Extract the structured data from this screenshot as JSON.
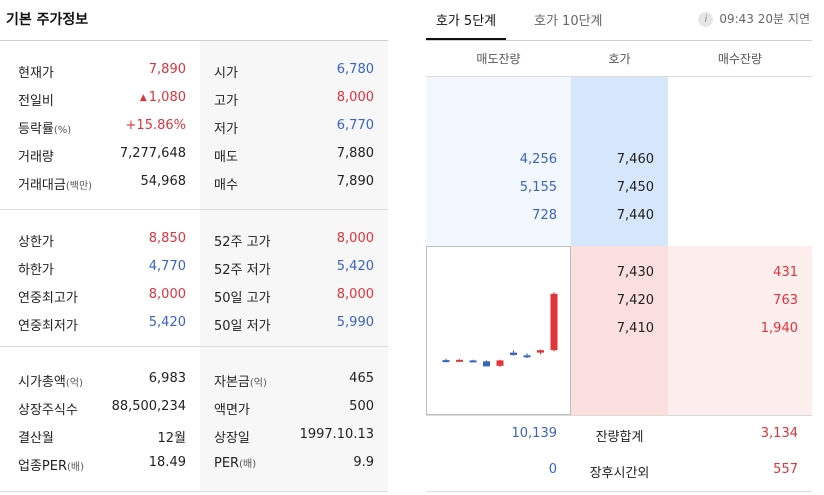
{
  "basic": {
    "title": "기본 주가정보",
    "group1": [
      {
        "label": "현재가",
        "unit": "",
        "value": "7,890",
        "color": "red",
        "label2": "시가",
        "unit2": "",
        "value2": "6,780",
        "color2": "blue"
      },
      {
        "label": "전일비",
        "unit": "",
        "value": "1,080",
        "arrow": "▲",
        "color": "red",
        "label2": "고가",
        "unit2": "",
        "value2": "8,000",
        "color2": "red"
      },
      {
        "label": "등락률",
        "unit": "(%)",
        "value": "+15.86%",
        "color": "red",
        "label2": "저가",
        "unit2": "",
        "value2": "6,770",
        "color2": "blue"
      },
      {
        "label": "거래량",
        "unit": "",
        "value": "7,277,648",
        "color": "dark",
        "label2": "매도",
        "unit2": "",
        "value2": "7,880",
        "color2": "dark"
      },
      {
        "label": "거래대금",
        "unit": "(백만)",
        "value": "54,968",
        "color": "dark",
        "label2": "매수",
        "unit2": "",
        "value2": "7,890",
        "color2": "dark"
      }
    ],
    "group2": [
      {
        "label": "상한가",
        "unit": "",
        "value": "8,850",
        "color": "red",
        "label2": "52주 고가",
        "unit2": "",
        "value2": "8,000",
        "color2": "red"
      },
      {
        "label": "하한가",
        "unit": "",
        "value": "4,770",
        "color": "blue",
        "label2": "52주 저가",
        "unit2": "",
        "value2": "5,420",
        "color2": "blue"
      },
      {
        "label": "연중최고가",
        "unit": "",
        "value": "8,000",
        "color": "red",
        "label2": "50일 고가",
        "unit2": "",
        "value2": "8,000",
        "color2": "red"
      },
      {
        "label": "연중최저가",
        "unit": "",
        "value": "5,420",
        "color": "blue",
        "label2": "50일 저가",
        "unit2": "",
        "value2": "5,990",
        "color2": "blue"
      }
    ],
    "group3": [
      {
        "label": "시가총액",
        "unit": "(억)",
        "value": "6,983",
        "color": "dark",
        "label2": "자본금",
        "unit2": "(억)",
        "value2": "465",
        "color2": "dark"
      },
      {
        "label": "상장주식수",
        "unit": "",
        "value": "88,500,234",
        "color": "dark",
        "label2": "액면가",
        "unit2": "",
        "value2": "500",
        "color2": "dark"
      },
      {
        "label": "결산월",
        "unit": "",
        "value": "12월",
        "color": "dark",
        "label2": "상장일",
        "unit2": "",
        "value2": "1997.10.13",
        "color2": "dark"
      },
      {
        "label": "업종PER",
        "unit": "(배)",
        "value": "18.49",
        "color": "dark",
        "label2": "PER",
        "unit2": "(배)",
        "value2": "9.9",
        "color2": "dark"
      }
    ]
  },
  "orderbook": {
    "tabs": [
      {
        "label": "호가 5단계",
        "active": true
      },
      {
        "label": "호가 10단계",
        "active": false
      }
    ],
    "delay_time": "09:43",
    "delay_text": "20분 지연",
    "info_icon": "i",
    "headers": {
      "ask_qty": "매도잔량",
      "price": "호가",
      "bid_qty": "매수잔량"
    },
    "asks": [
      {
        "qty": "4,256",
        "price": "7,460"
      },
      {
        "qty": "5,155",
        "price": "7,450"
      },
      {
        "qty": "728",
        "price": "7,440"
      }
    ],
    "bids": [
      {
        "price": "7,430",
        "qty": "431"
      },
      {
        "price": "7,420",
        "qty": "763"
      },
      {
        "price": "7,410",
        "qty": "1,940"
      }
    ],
    "total": {
      "ask": "10,139",
      "label": "잔량합계",
      "bid": "3,134"
    },
    "afterhours": {
      "ask": "0",
      "label": "장후시간외",
      "bid": "557"
    },
    "colors": {
      "up": "#e0333a",
      "down": "#3a64c0"
    }
  },
  "candles": [
    {
      "o": 6755,
      "h": 6780,
      "l": 6715,
      "c": 6725
    },
    {
      "o": 6750,
      "h": 6770,
      "l": 6735,
      "c": 6760
    },
    {
      "o": 6750,
      "h": 6760,
      "l": 6725,
      "c": 6730
    },
    {
      "o": 6735,
      "h": 6750,
      "l": 6650,
      "c": 6650
    },
    {
      "o": 6660,
      "h": 6760,
      "l": 6640,
      "c": 6750
    },
    {
      "o": 6880,
      "h": 6920,
      "l": 6830,
      "c": 6840
    },
    {
      "o": 6835,
      "h": 6870,
      "l": 6790,
      "c": 6830
    },
    {
      "o": 6880,
      "h": 6930,
      "l": 6850,
      "c": 6920
    },
    {
      "o": 6920,
      "h": 7890,
      "l": 6900,
      "c": 7860
    }
  ]
}
